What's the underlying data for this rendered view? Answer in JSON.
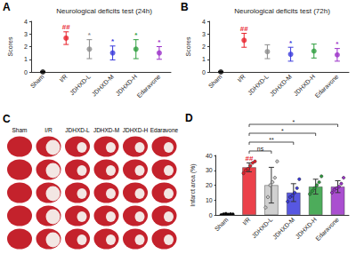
{
  "chart_data": [
    {
      "type": "scatter",
      "panel_label": "A",
      "title": "Neurological deficits test (24h)",
      "y_label": "Scores",
      "categories": [
        "Sham",
        "I/R",
        "JDHXD-L",
        "JDHXD-M",
        "JDHXD-H",
        "Edaravone"
      ],
      "values": [
        0,
        2.67,
        1.8,
        1.5,
        1.8,
        1.5
      ],
      "errors": [
        0,
        0.5,
        0.75,
        0.55,
        0.75,
        0.5
      ],
      "annotations": [
        null,
        "##",
        "*",
        "*",
        "*",
        "*"
      ],
      "colors": [
        "#000000",
        "#e8202a",
        "#8c8c8c",
        "#3a3adc",
        "#2e9e3e",
        "#9b30c8"
      ],
      "marker": "circle",
      "ylim": [
        0,
        4
      ],
      "yticks": [
        0,
        1,
        2,
        3,
        4
      ]
    },
    {
      "type": "scatter",
      "panel_label": "B",
      "title": "Neurological deficits test (72h)",
      "y_label": "Scores",
      "categories": [
        "Sham",
        "I/R",
        "JDHXD-L",
        "JDHXD-M",
        "JDHXD-H",
        "Edaravone"
      ],
      "values": [
        0,
        2.5,
        1.6,
        1.4,
        1.65,
        1.35
      ],
      "errors": [
        0,
        0.55,
        0.55,
        0.55,
        0.55,
        0.5
      ],
      "annotations": [
        null,
        "##",
        null,
        "*",
        null,
        "*"
      ],
      "colors": [
        "#000000",
        "#e8202a",
        "#8c8c8c",
        "#3a3adc",
        "#2e9e3e",
        "#9b30c8"
      ],
      "marker": "circle",
      "ylim": [
        0,
        4
      ],
      "yticks": [
        0,
        1,
        2,
        3,
        4
      ]
    },
    {
      "type": "bar",
      "panel_label": "D",
      "y_label": "Infarct area (%)",
      "categories": [
        "Sham",
        "I/R",
        "JDHXD-L",
        "JDHXD-M",
        "JDHXD-H",
        "Edaravone"
      ],
      "values": [
        0.4,
        32,
        20,
        15,
        19,
        19
      ],
      "errors": [
        0.3,
        3,
        12,
        6,
        5,
        4
      ],
      "points": [
        [
          0,
          0.5,
          0.8,
          0.3,
          0.6,
          0.4
        ],
        [
          28,
          30,
          31,
          33,
          35,
          36
        ],
        [
          5,
          12,
          20,
          22,
          25,
          36
        ],
        [
          9,
          12,
          13,
          15,
          18,
          24
        ],
        [
          14,
          16,
          18,
          20,
          22,
          26
        ],
        [
          15,
          17,
          18,
          19,
          21,
          25
        ]
      ],
      "annotations": [
        null,
        "##",
        null,
        null,
        null,
        null
      ],
      "comparisons": [
        {
          "from": "I/R",
          "to": "JDHXD-L",
          "label": "ns"
        },
        {
          "from": "I/R",
          "to": "JDHXD-M",
          "label": "**"
        },
        {
          "from": "I/R",
          "to": "JDHXD-H",
          "label": "*"
        },
        {
          "from": "I/R",
          "to": "Edaravone",
          "label": "*"
        }
      ],
      "colors": [
        "#000000",
        "#e8202a",
        "#c8c8c8",
        "#3a3adc",
        "#2e9e3e",
        "#9b30c8"
      ],
      "ylim": [
        0,
        40
      ],
      "yticks": [
        0,
        10,
        20,
        30,
        40
      ]
    }
  ],
  "photo_panel": {
    "label": "C",
    "columns": [
      "Sham",
      "I/R",
      "JDHXD-L",
      "JDHXD-M",
      "JDHXD-H",
      "Edaravone"
    ]
  }
}
